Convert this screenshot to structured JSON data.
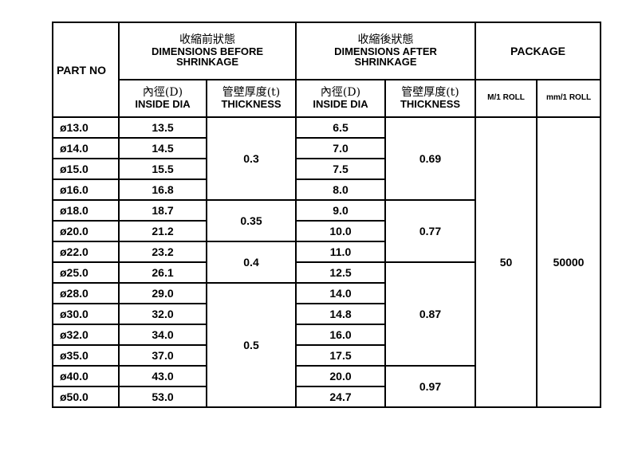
{
  "header": {
    "part_no": "PART NO",
    "before": {
      "cjk": "收縮前狀態",
      "en1": "DIMENSIONS BEFORE",
      "en2": "SHRINKAGE"
    },
    "after": {
      "cjk": "收縮後狀態",
      "en1": "DIMENSIONS AFTER",
      "en2": "SHRINKAGE"
    },
    "package": "PACKAGE",
    "inside_dia_cjk": "內徑(D)",
    "inside_dia_en": "INSIDE DIA",
    "thickness_cjk": "管壁厚度(t)",
    "thickness_en": "THICKNESS",
    "m_roll": "M/1 ROLL",
    "mm_roll": "mm/1 ROLL"
  },
  "rows": [
    {
      "part": "ø13.0",
      "before_dia": "13.5",
      "after_dia": "6.5"
    },
    {
      "part": "ø14.0",
      "before_dia": "14.5",
      "after_dia": "7.0"
    },
    {
      "part": "ø15.0",
      "before_dia": "15.5",
      "after_dia": "7.5"
    },
    {
      "part": "ø16.0",
      "before_dia": "16.8",
      "after_dia": "8.0"
    },
    {
      "part": "ø18.0",
      "before_dia": "18.7",
      "after_dia": "9.0"
    },
    {
      "part": "ø20.0",
      "before_dia": "21.2",
      "after_dia": "10.0"
    },
    {
      "part": "ø22.0",
      "before_dia": "23.2",
      "after_dia": "11.0"
    },
    {
      "part": "ø25.0",
      "before_dia": "26.1",
      "after_dia": "12.5"
    },
    {
      "part": "ø28.0",
      "before_dia": "29.0",
      "after_dia": "14.0"
    },
    {
      "part": "ø30.0",
      "before_dia": "32.0",
      "after_dia": "14.8"
    },
    {
      "part": "ø32.0",
      "before_dia": "34.0",
      "after_dia": "16.0"
    },
    {
      "part": "ø35.0",
      "before_dia": "37.0",
      "after_dia": "17.5"
    },
    {
      "part": "ø40.0",
      "before_dia": "43.0",
      "after_dia": "20.0"
    },
    {
      "part": "ø50.0",
      "before_dia": "53.0",
      "after_dia": "24.7"
    }
  ],
  "before_thickness_groups": [
    {
      "value": "0.3",
      "rows": 4
    },
    {
      "value": "0.35",
      "rows": 2
    },
    {
      "value": "0.4",
      "rows": 2
    },
    {
      "value": "0.5",
      "rows": 6
    }
  ],
  "after_thickness_groups": [
    {
      "value": "0.69",
      "rows": 4
    },
    {
      "value": "0.77",
      "rows": 3
    },
    {
      "value": "0.87",
      "rows": 5
    },
    {
      "value": "0.97",
      "rows": 2
    }
  ],
  "package": {
    "m_per_roll": "50",
    "mm_per_roll": "50000"
  }
}
